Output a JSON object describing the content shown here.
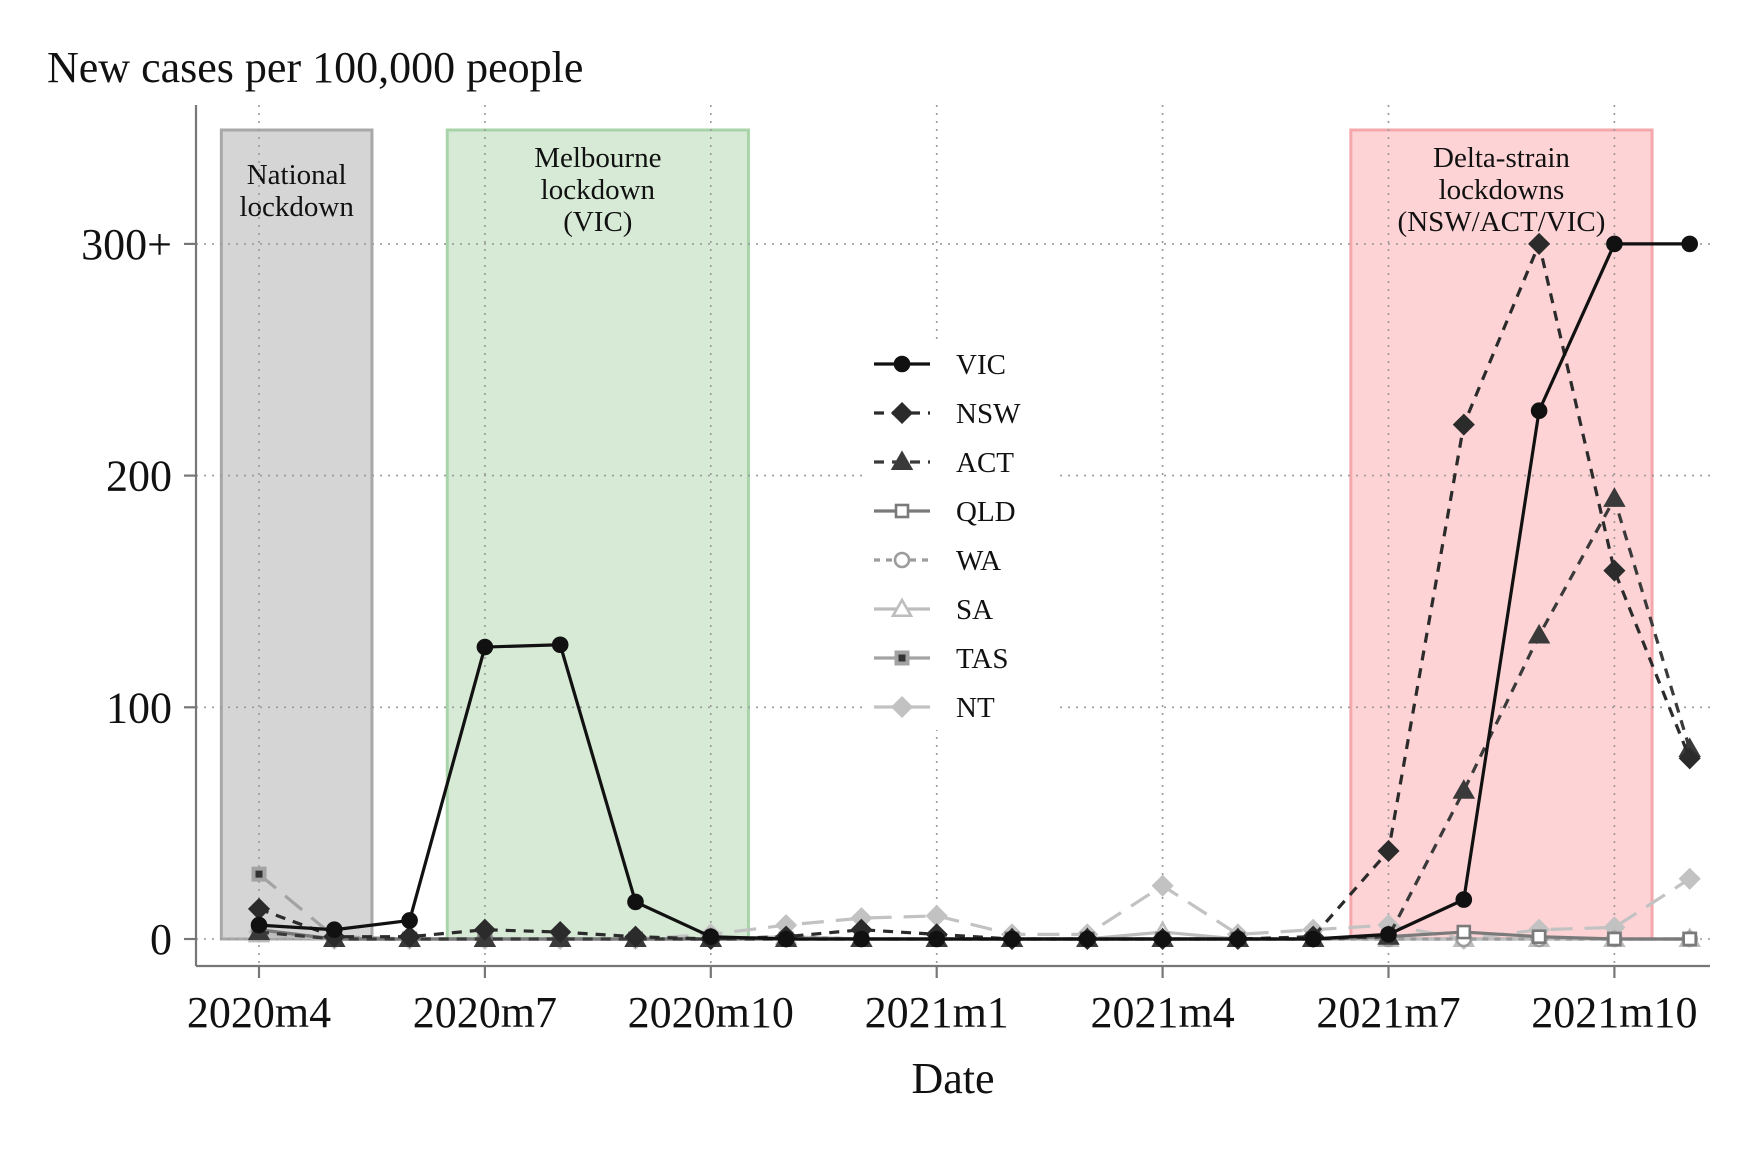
{
  "chart_data": {
    "type": "line",
    "title": "New cases per 100,000 people",
    "xlabel": "Date",
    "ylabel": "New cases per 100,000 people",
    "ylim": [
      -10,
      350
    ],
    "grid": true,
    "legend_position": "center",
    "x": [
      "2020m4",
      "2020m5",
      "2020m6",
      "2020m7",
      "2020m8",
      "2020m9",
      "2020m10",
      "2020m11",
      "2020m12",
      "2021m1",
      "2021m2",
      "2021m3",
      "2021m4",
      "2021m5",
      "2021m6",
      "2021m7",
      "2021m8",
      "2021m9",
      "2021m10",
      "2021m11"
    ],
    "x_ticks": [
      {
        "label": "2020m4",
        "index": 0
      },
      {
        "label": "2020m7",
        "index": 3
      },
      {
        "label": "2020m10",
        "index": 6
      },
      {
        "label": "2021m1",
        "index": 9
      },
      {
        "label": "2021m4",
        "index": 12
      },
      {
        "label": "2021m7",
        "index": 15
      },
      {
        "label": "2021m10",
        "index": 18
      }
    ],
    "y_ticks": [
      {
        "label": "0",
        "value": 0
      },
      {
        "label": "100",
        "value": 100
      },
      {
        "label": "200",
        "value": 200
      },
      {
        "label": "300+",
        "value": 300
      }
    ],
    "shaded_regions": [
      {
        "lines": [
          "National",
          "lockdown"
        ],
        "start": -0.5,
        "end": 1.5,
        "color": "#d5d5d5",
        "border": "#a8a8a8"
      },
      {
        "lines": [
          "Melbourne",
          "lockdown",
          "(VIC)"
        ],
        "start": 2.5,
        "end": 6.5,
        "color": "#d6ead6",
        "border": "#a9d4a9"
      },
      {
        "lines": [
          "Delta-strain",
          "lockdowns",
          "(NSW/ACT/VIC)"
        ],
        "start": 14.5,
        "end": 18.5,
        "color": "#fdd3d5",
        "border": "#f4a8ac"
      }
    ],
    "series": [
      {
        "name": "VIC",
        "color": "#111111",
        "dash": "solid",
        "marker": "circle",
        "filled": true,
        "values": [
          6,
          4,
          8,
          126,
          127,
          16,
          1,
          0,
          0,
          0,
          0,
          0,
          0,
          0,
          0,
          2,
          17,
          228,
          300,
          300
        ]
      },
      {
        "name": "NSW",
        "color": "#2b2b2b",
        "dash": "dashed",
        "marker": "diamond",
        "filled": true,
        "values": [
          13,
          1,
          1,
          4,
          3,
          1,
          0,
          1,
          4,
          2,
          0,
          0,
          0,
          0,
          1,
          38,
          222,
          300,
          159,
          78
        ]
      },
      {
        "name": "ACT",
        "color": "#3a3a3a",
        "dash": "dashed",
        "marker": "triangle",
        "filled": true,
        "values": [
          3,
          0,
          0,
          0,
          0,
          0,
          0,
          0,
          0,
          0,
          0,
          0,
          0,
          0,
          0,
          1,
          64,
          131,
          190,
          82
        ]
      },
      {
        "name": "QLD",
        "color": "#7a7a7a",
        "dash": "solid",
        "marker": "square",
        "filled": false,
        "values": [
          4,
          0,
          0,
          0,
          0,
          0,
          0,
          0,
          0,
          0,
          0,
          0,
          0,
          0,
          0,
          1,
          3,
          1,
          0,
          0
        ]
      },
      {
        "name": "WA",
        "color": "#9c9c9c",
        "dash": "shortdash",
        "marker": "circle",
        "filled": false,
        "values": [
          4,
          0,
          0,
          0,
          0,
          0,
          0,
          1,
          0,
          0,
          0,
          0,
          0,
          0,
          0,
          0,
          0,
          0,
          0,
          0
        ]
      },
      {
        "name": "SA",
        "color": "#bdbdbd",
        "dash": "solid",
        "marker": "triangle",
        "filled": false,
        "values": [
          2,
          0,
          0,
          0,
          0,
          0,
          0,
          1,
          0,
          0,
          0,
          0,
          3,
          0,
          0,
          0,
          0,
          0,
          0,
          0
        ]
      },
      {
        "name": "TAS",
        "color": "#a3a3a3",
        "dash": "longdash",
        "marker": "square-dot",
        "filled": true,
        "values": [
          28,
          1,
          0,
          0,
          0,
          0,
          0,
          0,
          0,
          0,
          0,
          0,
          0,
          0,
          0,
          0,
          0,
          0,
          0,
          0
        ]
      },
      {
        "name": "NT",
        "color": "#c2c2c2",
        "dash": "longdash",
        "marker": "diamond",
        "filled": true,
        "values": [
          3,
          0,
          0,
          0,
          0,
          0,
          2,
          6,
          9,
          10,
          2,
          2,
          23,
          2,
          4,
          6,
          0,
          4,
          5,
          26
        ]
      }
    ]
  }
}
